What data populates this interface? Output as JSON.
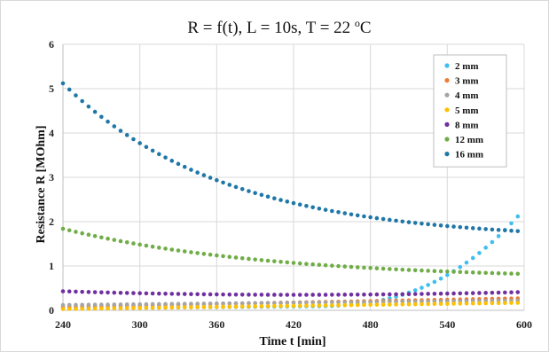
{
  "chart_data": {
    "type": "scatter",
    "title": "R = f(t), L = 10s, T = 22 °C",
    "title_parts": {
      "main": "R = f(t), L = 10s, T = 22 ",
      "sup": "o",
      "unit": "C"
    },
    "xlabel": "Time t [min]",
    "ylabel": "Resistance R [MOhm]",
    "xlim": [
      240,
      600
    ],
    "ylim": [
      0,
      6
    ],
    "xticks": [
      240,
      300,
      360,
      420,
      480,
      540,
      600
    ],
    "yticks": [
      0,
      1,
      2,
      3,
      4,
      5,
      6
    ],
    "grid": true,
    "legend_position": "top-right",
    "series": [
      {
        "name": "2 mm",
        "color": "#3fbfef",
        "model": {
          "type": "rising",
          "x0": 240,
          "x1": 596,
          "y0": 0.04,
          "y1": 2.15,
          "knee": 430
        }
      },
      {
        "name": "3 mm",
        "color": "#ed7d31",
        "model": {
          "type": "linear",
          "x0": 240,
          "x1": 596,
          "y0": 0.08,
          "y1": 0.27
        }
      },
      {
        "name": "4 mm",
        "color": "#a5a5a5",
        "model": {
          "type": "linear",
          "x0": 240,
          "x1": 596,
          "y0": 0.12,
          "y1": 0.22
        }
      },
      {
        "name": "5 mm",
        "color": "#ffc000",
        "model": {
          "type": "linear",
          "x0": 240,
          "x1": 596,
          "y0": 0.03,
          "y1": 0.17
        }
      },
      {
        "name": "8 mm",
        "color": "#7030a0",
        "model": {
          "type": "dip",
          "x0": 240,
          "x1": 596,
          "y0": 0.43,
          "ymin": 0.35,
          "y1": 0.41,
          "xmin": 420
        }
      },
      {
        "name": "12 mm",
        "color": "#70ad47",
        "model": {
          "type": "decay",
          "x0": 240,
          "x1": 596,
          "y0": 1.84,
          "yinf": 0.7,
          "tau": 160
        }
      },
      {
        "name": "16 mm",
        "color": "#1f77a8",
        "model": {
          "type": "decay",
          "x0": 240,
          "x1": 596,
          "y0": 5.12,
          "yinf": 1.58,
          "tau": 125
        }
      }
    ]
  }
}
